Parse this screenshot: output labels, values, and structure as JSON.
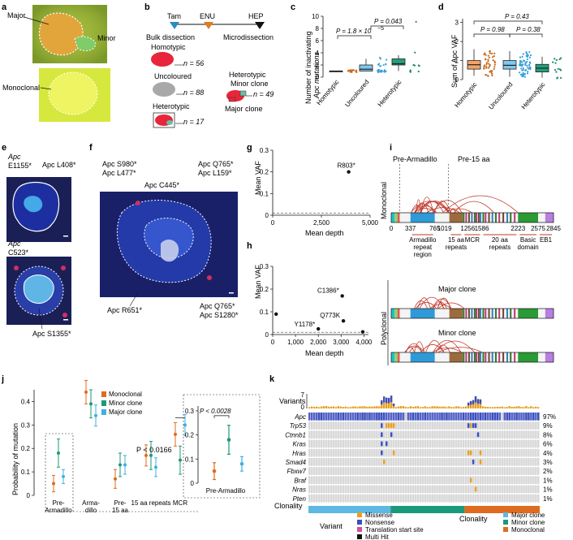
{
  "panels": {
    "a": {
      "letter": "a",
      "major": "Major",
      "minor": "Minor",
      "monoclonal": "Monoclonal"
    },
    "b": {
      "letter": "b",
      "tam": "Tam",
      "enu": "ENU",
      "hep": "HEP",
      "bulk": "Bulk dissection",
      "micro": "Microdissection",
      "homotypic": "Homotypic",
      "n_homo": "n = 56",
      "uncoloured": "Uncoloured",
      "n_unc": "n = 88",
      "heterotypic": "Heterotypic",
      "n_het": "n = 17",
      "het_minor": "Heterotypic",
      "minor_clone": "Minor clone",
      "n_minor": "n = 49",
      "major_clone": "Major clone"
    },
    "c": {
      "letter": "c",
      "ylabel1": "Number of inactivating",
      "ylabel2": "Apc mutations",
      "p1": "P = 1.8 × 10",
      "p1_exp": "−5",
      "p2": "P = 0.043",
      "categories": [
        "Homotypic",
        "Uncoloured",
        "Heterotypic"
      ],
      "yticks": [
        "0",
        "2",
        "4",
        "6",
        "8",
        "10"
      ]
    },
    "d": {
      "letter": "d",
      "ylabel": "Sum of Apc VAF",
      "p_top": "P = 0.43",
      "p1": "P = 0.98",
      "p2": "P = 0.38",
      "categories": [
        "Homotypic",
        "Uncoloured",
        "Heterotypic"
      ],
      "yticks": [
        "0",
        "1",
        "2",
        "3"
      ]
    },
    "e": {
      "letter": "e",
      "l1a": "Apc",
      "l1b": "E1155*",
      "l2": "Apc L408*",
      "l3a": "Apc",
      "l3b": "C523*",
      "l4": "Apc S1355*"
    },
    "f": {
      "letter": "f",
      "l1": "Apc S980*",
      "l2": "Apc L477*",
      "l3": "Apc C445*",
      "l4": "Apc Q765*",
      "l5": "Apc L159*",
      "l6": "Apc R651*",
      "l7": "Apc Q765*",
      "l8": "Apc S1280*"
    },
    "g": {
      "letter": "g",
      "ylabel": "Mean VAF",
      "xlabel": "Mean depth",
      "label": "R803*",
      "yticks": [
        "0",
        "0.1",
        "0.2",
        "0.3"
      ],
      "xticks": [
        "0",
        "2,500",
        "5,000"
      ]
    },
    "h": {
      "letter": "h",
      "ylabel": "Mean VAF",
      "xlabel": "Mean depth",
      "labels": [
        "C1386*",
        "Q773K",
        "Y1178*"
      ],
      "yticks": [
        "0",
        "0.1",
        "0.2",
        "0.3"
      ],
      "xticks": [
        "0",
        "1,000",
        "2,000",
        "3,000",
        "4,000"
      ]
    },
    "i": {
      "letter": "i",
      "pre_arm": "Pre-Armadillo",
      "pre15": "Pre-15 aa",
      "monoclonal": "Monoclonal",
      "polyclonal": "Polyclonal",
      "positions": [
        "0",
        "337",
        "765",
        "1019",
        "1256",
        "1586",
        "2223",
        "2575",
        "2845"
      ],
      "domains": [
        "Armadillo repeat region",
        "15 aa repeats",
        "MCR",
        "20 aa repeats",
        "Basic domain",
        "EB1"
      ],
      "major_clone": "Major clone",
      "minor_clone": "Minor clone"
    },
    "j": {
      "letter": "j",
      "ylabel": "Probability of mutation",
      "legend": [
        "Monoclonal",
        "Minor clone",
        "Major clone"
      ],
      "p_main": "P < 0.0166",
      "p_inset": "P < 0.0028",
      "categories": [
        "Pre-Armadillo",
        "Armadillo",
        "Pre-15 aa repeats",
        "15 aa repeats",
        "MCR"
      ],
      "cat_lines": [
        [
          "Pre-",
          "Armadillo"
        ],
        [
          "Arma-",
          "dillo"
        ],
        [
          "Pre-",
          "15 aa"
        ],
        [
          "15 aa repeats"
        ],
        [
          "MCR"
        ]
      ],
      "inset_label": "Pre-Armadillo",
      "yticks": [
        "0",
        "0.1",
        "0.2",
        "0.3",
        "0.4"
      ],
      "inset_yticks": [
        "0",
        "0.1",
        "0.2",
        "0.3"
      ]
    },
    "k": {
      "letter": "k",
      "variants_label": "Variants",
      "yticks": [
        "7",
        "0"
      ],
      "genes": [
        "Apc",
        "Trp53",
        "Ctnnb1",
        "Kras",
        "Hras",
        "Smad4",
        "Fbxw7",
        "Braf",
        "Nras",
        "Pten"
      ],
      "pcts": [
        "97%",
        "9%",
        "8%",
        "6%",
        "4%",
        "3%",
        "2%",
        "1%",
        "1%",
        "1%"
      ],
      "clonality": "Clonality",
      "variant_title": "Variant",
      "variant_types": [
        "Missense",
        "Nonsense",
        "Translation start site",
        "Multi Hit"
      ],
      "clonality_title": "Clonality",
      "clonality_types": [
        "Major clone",
        "Minor clone",
        "Monoclonal"
      ]
    }
  },
  "chart_data": [
    {
      "type": "scatter",
      "panel": "g",
      "title": "",
      "xlabel": "Mean depth",
      "ylabel": "Mean VAF",
      "xlim": [
        0,
        5000
      ],
      "ylim": [
        0,
        0.3
      ],
      "points": [
        {
          "x": 3900,
          "y": 0.2,
          "label": "R803*"
        }
      ],
      "threshold": 0.01
    },
    {
      "type": "scatter",
      "panel": "h",
      "title": "",
      "xlabel": "Mean depth",
      "ylabel": "Mean VAF",
      "xlim": [
        0,
        4200
      ],
      "ylim": [
        0,
        0.3
      ],
      "points": [
        {
          "x": 150,
          "y": 0.09,
          "label": ""
        },
        {
          "x": 2000,
          "y": 0.025,
          "label": "Y1178*"
        },
        {
          "x": 3050,
          "y": 0.17,
          "label": "C1386*"
        },
        {
          "x": 3100,
          "y": 0.06,
          "label": "Q773K"
        },
        {
          "x": 3950,
          "y": 0.012,
          "label": ""
        }
      ],
      "threshold": 0.01
    },
    {
      "type": "scatter",
      "panel": "j",
      "title": "",
      "ylabel": "Probability of mutation",
      "ylim": [
        0,
        0.45
      ],
      "categories": [
        "Pre-Armadillo",
        "Armadillo",
        "Pre-15 aa repeats",
        "15 aa repeats",
        "MCR"
      ],
      "series": [
        {
          "name": "Monoclonal",
          "color": "#e06b1e",
          "values": [
            0.05,
            0.44,
            0.07,
            0.17,
            0.26
          ],
          "err": [
            0.035,
            0.05,
            0.04,
            0.045,
            0.05
          ]
        },
        {
          "name": "Minor clone",
          "color": "#1a9a7a",
          "values": [
            0.18,
            0.39,
            0.13,
            0.17,
            0.15
          ],
          "err": [
            0.06,
            0.06,
            0.05,
            0.06,
            0.06
          ]
        },
        {
          "name": "Major clone",
          "color": "#3fb1e0",
          "values": [
            0.08,
            0.34,
            0.13,
            0.12,
            0.3
          ],
          "err": [
            0.03,
            0.045,
            0.04,
            0.04,
            0.045
          ]
        }
      ]
    }
  ]
}
